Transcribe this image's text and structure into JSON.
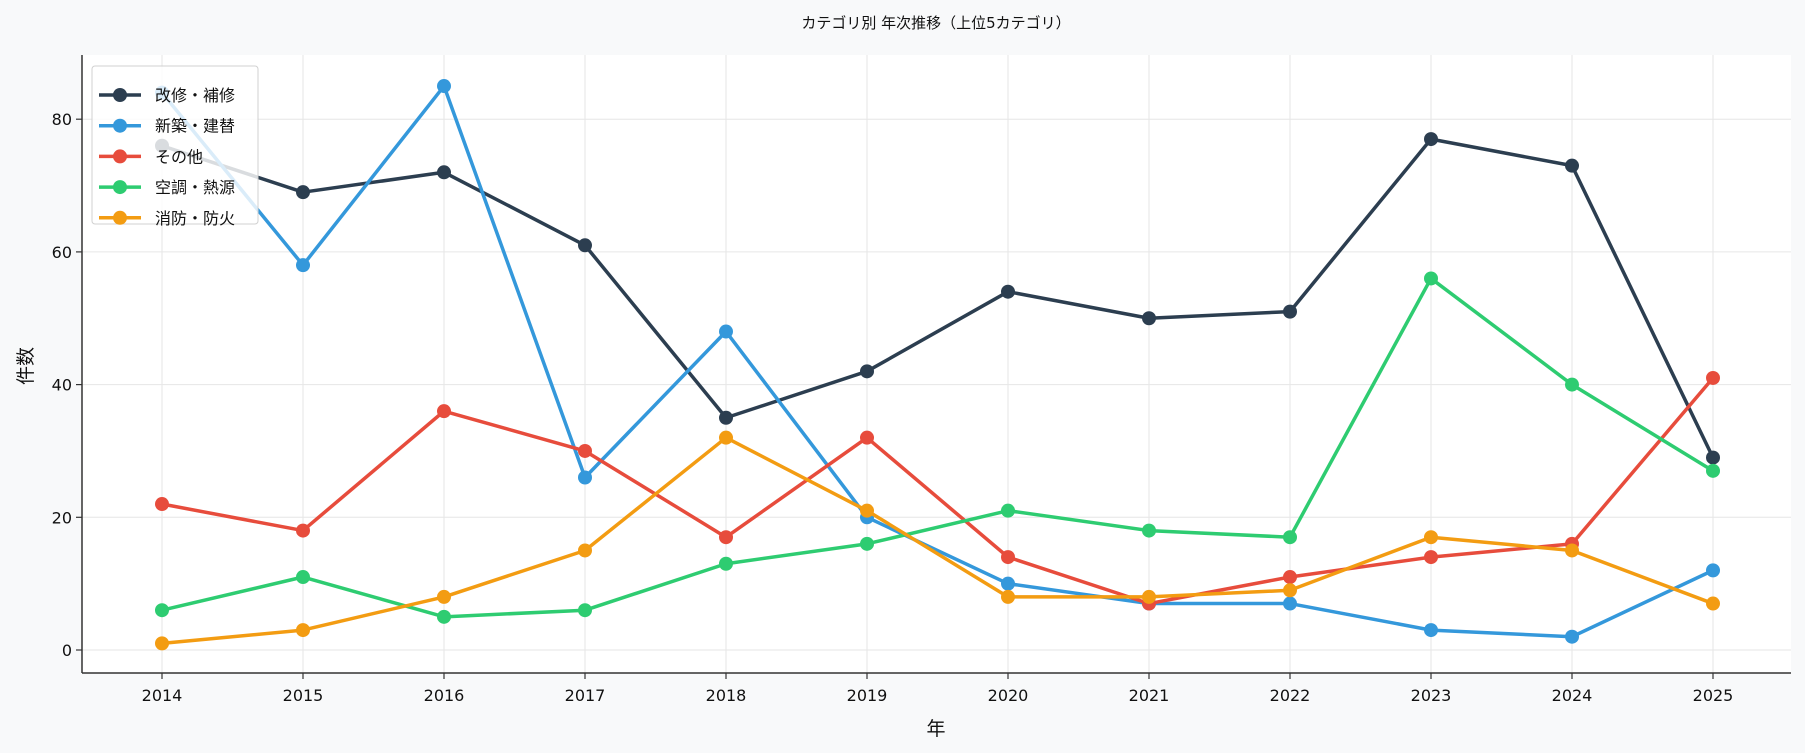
{
  "chart_data": {
    "type": "line",
    "title": "カテゴリ別 年次推移（上位5カテゴリ）",
    "xlabel": "年",
    "ylabel": "件数",
    "x": [
      2014,
      2015,
      2016,
      2017,
      2018,
      2019,
      2020,
      2021,
      2022,
      2023,
      2024,
      2025
    ],
    "ylim": [
      -3,
      89
    ],
    "yticks": [
      0,
      20,
      40,
      60,
      80
    ],
    "grid": true,
    "legend_position": "top-left",
    "series": [
      {
        "name": "改修・補修",
        "color": "#2c3e50",
        "values": [
          76,
          69,
          72,
          61,
          35,
          42,
          54,
          50,
          51,
          77,
          73,
          29
        ]
      },
      {
        "name": "新築・建替",
        "color": "#3498db",
        "values": [
          84,
          58,
          85,
          26,
          48,
          20,
          10,
          7,
          7,
          3,
          2,
          12
        ]
      },
      {
        "name": "その他",
        "color": "#e74c3c",
        "values": [
          22,
          18,
          36,
          30,
          17,
          32,
          14,
          7,
          11,
          14,
          16,
          41
        ]
      },
      {
        "name": "空調・熱源",
        "color": "#2ecc71",
        "values": [
          6,
          11,
          5,
          6,
          13,
          16,
          21,
          18,
          17,
          56,
          40,
          27
        ]
      },
      {
        "name": "消防・防火",
        "color": "#f39c12",
        "values": [
          1,
          3,
          8,
          15,
          32,
          21,
          8,
          8,
          9,
          17,
          15,
          7
        ]
      }
    ]
  }
}
